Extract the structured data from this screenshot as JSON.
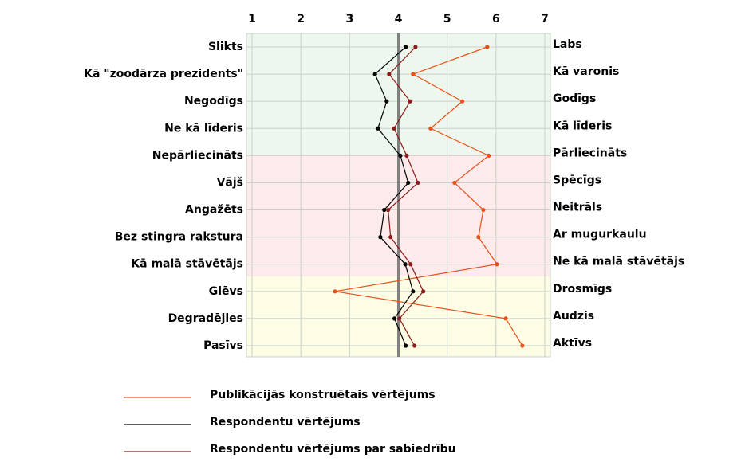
{
  "chart_data": {
    "type": "line",
    "orientation": "horizontal",
    "categories": [
      "Slikts",
      "Kā \"zoodārza prezidents\"",
      "Negodīgs",
      "Ne kā līderis",
      "Nepārliecināts",
      "Vājš",
      "Angažēts",
      "Bez stingra rakstura",
      "Kā malā stāvētājs",
      "Glēvs",
      "Degradējies",
      "Pasīvs"
    ],
    "right_labels": [
      "Labs",
      "Kā varonis",
      "Godīgs",
      "Kā līderis",
      "Pārliecināts",
      "Spēcīgs",
      "Neitrāls",
      "Ar mugurkaulu",
      "Ne kā malā stāvētājs",
      "Drosmīgs",
      "Audzis",
      "Aktīvs"
    ],
    "xlim": [
      1,
      7
    ],
    "xticks": [
      1,
      2,
      3,
      4,
      5,
      6,
      7
    ],
    "reference_x": 4,
    "grid": true,
    "series": [
      {
        "name": "Publikācijās konstruētais vērtējums",
        "color": "#e8501a",
        "values": [
          5.82,
          4.3,
          5.31,
          4.66,
          5.85,
          5.15,
          5.74,
          5.64,
          6.02,
          2.7,
          6.2,
          6.54
        ]
      },
      {
        "name": "Respondentu vērtējums",
        "color": "#000000",
        "values": [
          4.15,
          3.52,
          3.76,
          3.58,
          4.04,
          4.2,
          3.71,
          3.63,
          4.14,
          4.3,
          3.92,
          4.15
        ]
      },
      {
        "name": "Respondentu vērtējums par sabiedrību",
        "color": "#8b1a1a",
        "values": [
          4.35,
          3.81,
          4.24,
          3.91,
          4.17,
          4.4,
          3.79,
          3.84,
          4.25,
          4.51,
          4.02,
          4.33
        ]
      }
    ]
  }
}
